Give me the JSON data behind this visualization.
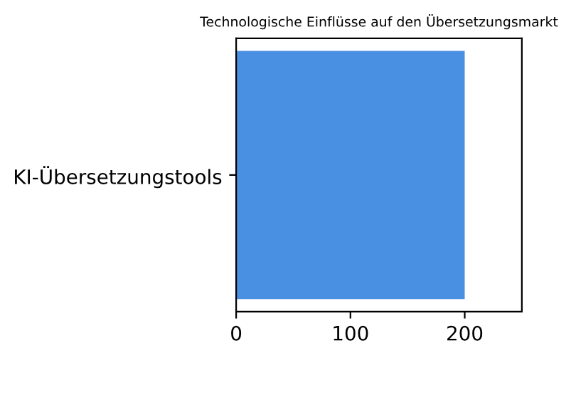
{
  "chart_data": {
    "type": "bar",
    "orientation": "horizontal",
    "title": "Technologische Einflüsse auf den Übersetzungsmarkt",
    "categories": [
      "KI-Übersetzungstools"
    ],
    "values": [
      200
    ],
    "color": "#4a90e2",
    "xlim": [
      0,
      250
    ],
    "xticks": [
      0,
      100,
      200
    ],
    "grid": false
  }
}
